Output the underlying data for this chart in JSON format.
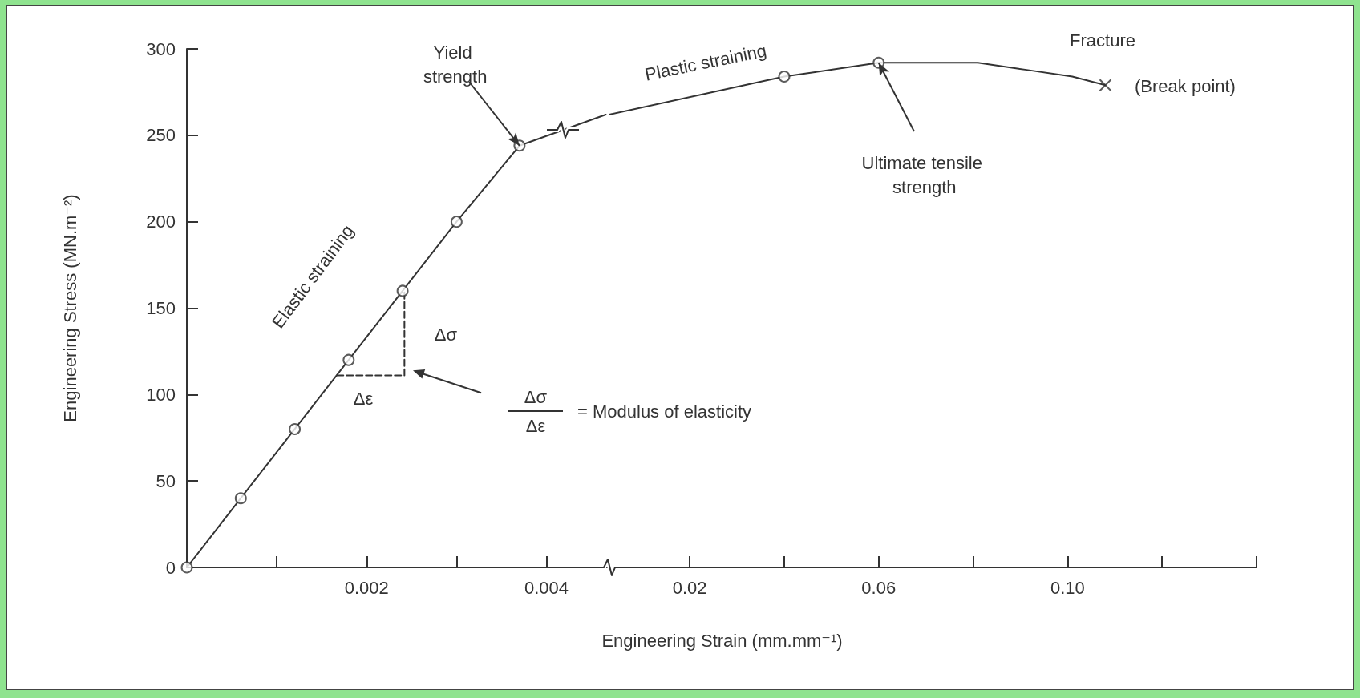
{
  "chart_data": [
    {
      "type": "line",
      "ylabel": "Engineering Stress (MN.m⁻²)",
      "ylim": [
        0,
        300
      ],
      "yticks": [
        0,
        50,
        100,
        150,
        200,
        250,
        300
      ],
      "xlim": [
        0,
        0.0047
      ],
      "xticks": [
        {
          "value": 0.001,
          "label": null
        },
        0.002,
        {
          "value": 0.003,
          "label": null
        },
        0.004
      ],
      "grid": false,
      "marker": "none",
      "line_style": "solid",
      "series": [
        {
          "color": "#333333",
          "x": [
            0,
            0.0006,
            0.0012,
            0.0018,
            0.0024,
            0.003,
            0.0037,
            0.00466
          ],
          "values": [
            0,
            40,
            80,
            120,
            160,
            200,
            244,
            262
          ]
        },
        {
          "type": "scatter",
          "marker": "circle",
          "color": "#333333",
          "x": [
            0,
            0.0006,
            0.0012,
            0.0018,
            0.0024,
            0.003,
            0.0037
          ],
          "values": [
            0,
            40,
            80,
            120,
            160,
            200,
            244
          ]
        },
        {
          "line_style": "dashed",
          "color": "#333333",
          "x": [
            0.00167,
            0.00242,
            0.00242
          ],
          "values": [
            111,
            111,
            160
          ]
        }
      ],
      "annotations": [
        "Elastic straining",
        {
          "text": "Yield strength",
          "x": 0.0037,
          "y": 244
        },
        "Δσ",
        "Δε",
        "Δσ",
        "Δε",
        "= Modulus of elasticity"
      ]
    },
    {
      "type": "line",
      "xlabel": "Engineering Strain (mm.mm⁻¹)",
      "ylim": [
        0,
        300
      ],
      "xlim": [
        0.003,
        0.14
      ],
      "xticks": [
        0.02,
        {
          "value": 0.04,
          "label": null
        },
        0.06,
        {
          "value": 0.08,
          "label": null
        },
        {
          "value": 0.1,
          "label": "0.10"
        },
        {
          "value": 0.12,
          "label": null
        },
        {
          "value": 0.14,
          "label": null
        }
      ],
      "tick_labels": "x",
      "grid": false,
      "marker": "none",
      "line_style": "solid",
      "series": [
        {
          "color": "#333333",
          "x": [
            0.003,
            0.04,
            0.06,
            0.071,
            0.081,
            0.091,
            0.101,
            0.108
          ],
          "values": [
            262,
            284,
            292,
            292,
            292,
            288,
            284,
            279
          ]
        },
        {
          "type": "scatter",
          "marker": "circle",
          "color": "#333333",
          "x": [
            0.04,
            0.06
          ],
          "values": [
            284,
            292
          ]
        },
        {
          "type": "scatter",
          "marker": "cross",
          "color": "#333333",
          "x": [
            0.108
          ],
          "values": [
            279
          ]
        }
      ],
      "annotations": [
        "Plastic straining",
        {
          "text": "Ultimate tensile strength",
          "x": 0.06,
          "y": 292
        },
        "Fracture",
        "(Break point)"
      ]
    }
  ]
}
